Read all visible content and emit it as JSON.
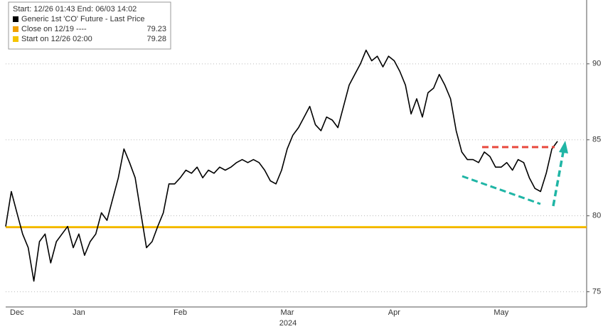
{
  "chart_data": {
    "type": "line",
    "legend_title": "Start: 12/26 01:43 End: 06/03 14:02",
    "categories": [
      null,
      null,
      "Dec",
      null,
      null,
      null,
      null,
      null,
      null,
      null,
      null,
      null,
      null,
      "Jan",
      null,
      null,
      null,
      null,
      null,
      null,
      null,
      null,
      null,
      null,
      null,
      null,
      null,
      null,
      null,
      null,
      null,
      "Feb",
      null,
      null,
      null,
      null,
      null,
      null,
      null,
      null,
      null,
      null,
      null,
      null,
      null,
      null,
      null,
      null,
      null,
      null,
      "Mar",
      null,
      null,
      null,
      null,
      null,
      null,
      null,
      null,
      null,
      null,
      null,
      null,
      null,
      null,
      null,
      null,
      null,
      null,
      "Apr",
      null,
      null,
      null,
      null,
      null,
      null,
      null,
      null,
      null,
      null,
      null,
      null,
      null,
      null,
      null,
      null,
      null,
      null,
      "May",
      null,
      null,
      null,
      null,
      null,
      null,
      null,
      null,
      null,
      null
    ],
    "x_sublabel": "2024",
    "series": [
      {
        "name": "Generic 1st 'CO' Future - Last Price",
        "color": "#000000",
        "values": [
          79.3,
          81.6,
          80.2,
          78.8,
          77.9,
          75.7,
          78.3,
          78.8,
          76.9,
          78.3,
          78.8,
          79.3,
          77.9,
          78.8,
          77.4,
          78.3,
          78.8,
          80.2,
          79.7,
          81.1,
          82.5,
          84.4,
          83.5,
          82.5,
          80.2,
          77.9,
          78.3,
          79.3,
          80.2,
          82.1,
          82.1,
          82.5,
          83.0,
          82.8,
          83.2,
          82.5,
          83.0,
          82.8,
          83.2,
          83.0,
          83.2,
          83.5,
          83.7,
          83.5,
          83.7,
          83.5,
          83.0,
          82.3,
          82.1,
          83.0,
          84.4,
          85.3,
          85.8,
          86.5,
          87.2,
          86.0,
          85.6,
          86.5,
          86.3,
          85.8,
          87.2,
          88.6,
          89.3,
          90.0,
          90.9,
          90.2,
          90.5,
          89.8,
          90.5,
          90.2,
          89.5,
          88.6,
          86.7,
          87.7,
          86.5,
          88.1,
          88.4,
          89.3,
          88.6,
          87.7,
          85.6,
          84.2,
          83.7,
          83.7,
          83.5,
          84.2,
          83.9,
          83.2,
          83.2,
          83.5,
          83.0,
          83.7,
          83.5,
          82.5,
          81.8,
          81.6,
          82.8,
          84.4,
          84.9
        ]
      }
    ],
    "reference_lines": [
      {
        "name": "Close on 12/19 ----",
        "value": 79.23,
        "color": "#f0a000"
      },
      {
        "name": "Start on 12/26 02:00",
        "value": 79.28,
        "color": "#f5c400"
      }
    ],
    "ylim": [
      74,
      94.2
    ],
    "yticks": [
      75,
      80,
      85,
      90
    ],
    "grid": true
  }
}
